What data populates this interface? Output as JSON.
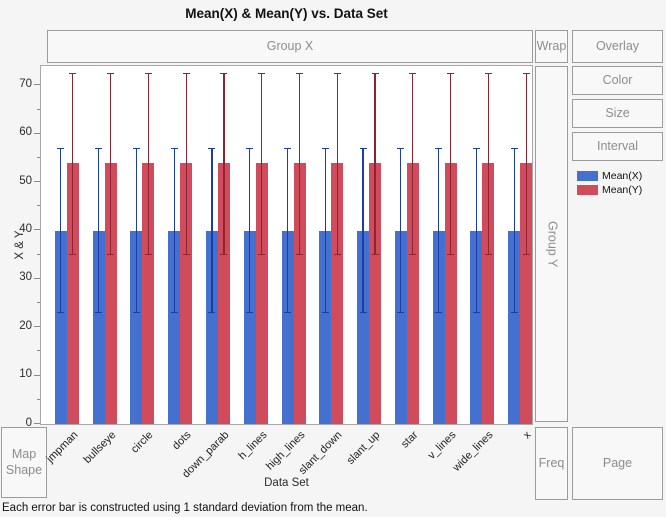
{
  "title": "Mean(X) & Mean(Y) vs. Data Set",
  "drop_zones": {
    "group_x": "Group X",
    "wrap": "Wrap",
    "overlay": "Overlay",
    "color": "Color",
    "size": "Size",
    "interval": "Interval",
    "group_y": "Group Y",
    "map_shape": "Map Shape",
    "freq": "Freq",
    "page": "Page"
  },
  "footer": "Each error bar is constructed using 1 standard deviation from the mean.",
  "chart_data": {
    "type": "bar",
    "title": "Mean(X) & Mean(Y) vs. Data Set",
    "xlabel": "Data Set",
    "ylabel": "X & Y",
    "ylim": [
      0,
      74
    ],
    "yticks": [
      0,
      10,
      20,
      30,
      40,
      50,
      60,
      70
    ],
    "minor_tick_step": 5,
    "grid": "off",
    "legend_position": "right",
    "error_bar_note": "Each error bar is constructed using 1 standard deviation from the mean.",
    "categories": [
      "jmpman",
      "bullseye",
      "circle",
      "dots",
      "down_parab",
      "h_lines",
      "high_lines",
      "slant_down",
      "slant_up",
      "star",
      "v_lines",
      "wide_lines",
      "x"
    ],
    "series": [
      {
        "name": "Mean(X)",
        "color": "#4471d0",
        "error_color": "#1b3da6",
        "values": [
          40,
          40,
          40,
          40,
          40,
          40,
          40,
          40,
          40,
          40,
          40,
          40,
          40
        ],
        "error_low": [
          23,
          23,
          23,
          23,
          23,
          23,
          23,
          23,
          23,
          23,
          23,
          23,
          23
        ],
        "error_high": [
          57,
          57,
          57,
          57,
          57,
          57,
          57,
          57,
          57,
          57,
          57,
          57,
          57
        ]
      },
      {
        "name": "Mean(Y)",
        "color": "#d04b5b",
        "error_color": "#8e2332",
        "values": [
          54,
          54,
          54,
          54,
          54,
          54,
          54,
          54,
          54,
          54,
          54,
          54,
          54
        ],
        "error_low": [
          35,
          35,
          35,
          35,
          35,
          35,
          35,
          35,
          35,
          35,
          35,
          35,
          35
        ],
        "error_high": [
          72.5,
          72.5,
          72.5,
          72.5,
          72.5,
          72.5,
          72.5,
          72.5,
          72.5,
          72.5,
          72.5,
          72.5,
          72.5
        ]
      }
    ]
  }
}
